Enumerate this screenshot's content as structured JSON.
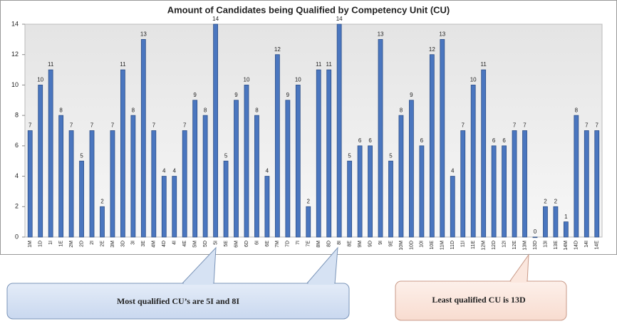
{
  "chart_data": {
    "type": "bar",
    "title": "Amount of Candidates being Qualified by Competency Unit (CU)",
    "categories": [
      "1M",
      "1D",
      "1I",
      "1E",
      "2M",
      "2D",
      "2I",
      "2E",
      "3M",
      "3D",
      "3I",
      "3E",
      "4M",
      "4D",
      "4I",
      "4E",
      "5M",
      "5D",
      "5I",
      "5E",
      "6M",
      "6D",
      "6I",
      "6E",
      "7M",
      "7D",
      "7I",
      "7E",
      "8M",
      "8D",
      "8I",
      "8E",
      "9M",
      "9D",
      "9I",
      "9E",
      "10M",
      "10D",
      "10I",
      "10E",
      "11M",
      "11D",
      "11I",
      "11E",
      "12M",
      "12D",
      "12I",
      "12E",
      "13M",
      "13D",
      "13I",
      "13E",
      "14M",
      "14D",
      "14I",
      "14E"
    ],
    "values": [
      7,
      10,
      11,
      8,
      7,
      5,
      7,
      2,
      7,
      11,
      8,
      13,
      7,
      4,
      4,
      7,
      9,
      8,
      14,
      5,
      9,
      10,
      8,
      4,
      12,
      9,
      10,
      2,
      11,
      11,
      14,
      5,
      6,
      6,
      13,
      5,
      8,
      9,
      6,
      12,
      13,
      4,
      7,
      10,
      11,
      6,
      6,
      7,
      7,
      0,
      2,
      2,
      1,
      8,
      7,
      7
    ],
    "color": "#4a76bf",
    "ylim": [
      0,
      14
    ],
    "yticks": [
      0,
      2,
      4,
      6,
      8,
      10,
      12,
      14
    ],
    "annotations": [
      "Most qualified  CU’s are 5I and 8I",
      "Least qualified  CU is 13D"
    ]
  }
}
